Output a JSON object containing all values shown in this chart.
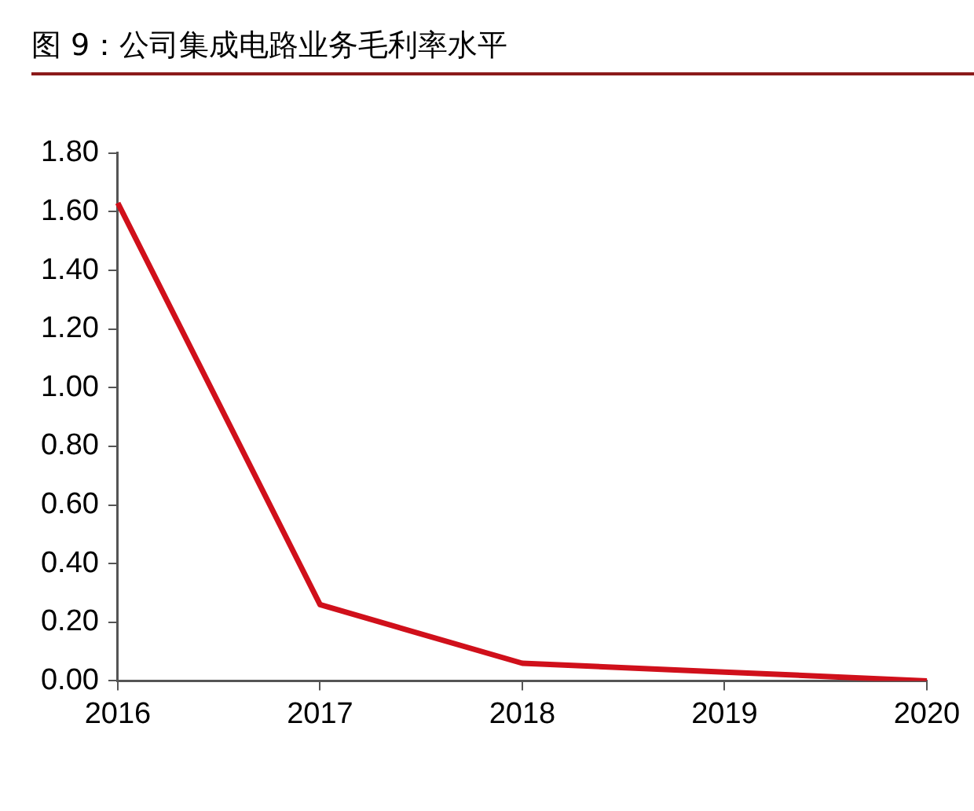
{
  "chart_data": {
    "type": "line",
    "title": "图 9：公司集成电路业务毛利率水平",
    "categories": [
      "2016",
      "2017",
      "2018",
      "2019",
      "2020"
    ],
    "series": [
      {
        "color": "#d0101b",
        "values": [
          1.63,
          0.26,
          0.06,
          0.03,
          0.0
        ]
      }
    ],
    "ylim": [
      0,
      1.8
    ],
    "yticks": [
      {
        "value": 0,
        "label": "0.00"
      },
      {
        "value": 0.2,
        "label": "0.20"
      },
      {
        "value": 0.4,
        "label": "0.40"
      },
      {
        "value": 0.6,
        "label": "0.60"
      },
      {
        "value": 0.8,
        "label": "0.80"
      },
      {
        "value": 1,
        "label": "1.00"
      },
      {
        "value": 1.2,
        "label": "1.20"
      },
      {
        "value": 1.4,
        "label": "1.40"
      },
      {
        "value": 1.6,
        "label": "1.60"
      },
      {
        "value": 1.8,
        "label": "1.80"
      }
    ],
    "grid": false,
    "legend": false,
    "marker": "none",
    "line_style": "solid"
  }
}
